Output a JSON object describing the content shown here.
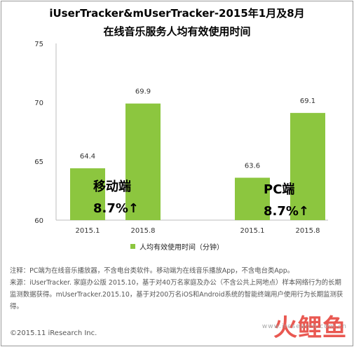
{
  "title_line1": "iUserTracker&mUserTracker-2015年1月及8月",
  "title_line2": "在线音乐服务人均有效使用时间",
  "chart_data": {
    "type": "bar",
    "groups": [
      {
        "name": "移动端",
        "growth": "8.7%↑",
        "categories": [
          "2015.1",
          "2015.8"
        ],
        "values": [
          64.4,
          69.9
        ]
      },
      {
        "name": "PC端",
        "growth": "8.7%↑",
        "categories": [
          "2015.1",
          "2015.8"
        ],
        "values": [
          63.6,
          69.1
        ]
      }
    ],
    "series_name": "人均有效使用时间（分钟）",
    "yticks": [
      60,
      65,
      70,
      75
    ],
    "ylim": [
      60,
      75
    ],
    "bar_color": "#8cc63f",
    "legend_position": "bottom"
  },
  "notes": [
    "注释：PC端为在线音乐播放器，不含电台类软件。移动端为在线音乐播放App，不含电台类App。",
    "来源：iUserTracker. 家庭办公版 2015.10，基于对40万名家庭及办公（不含公共上网地点）样本网络行为的长期监测数据获得。mUserTracker.2015.10，基于对200万名iOS和Android系统的智能终端用户使用行为长期监测获得。"
  ],
  "footer": "©2015.11 iResearch Inc.",
  "watermark": "火鲤鱼",
  "watermark_url": "www.iresearch.com.cn"
}
